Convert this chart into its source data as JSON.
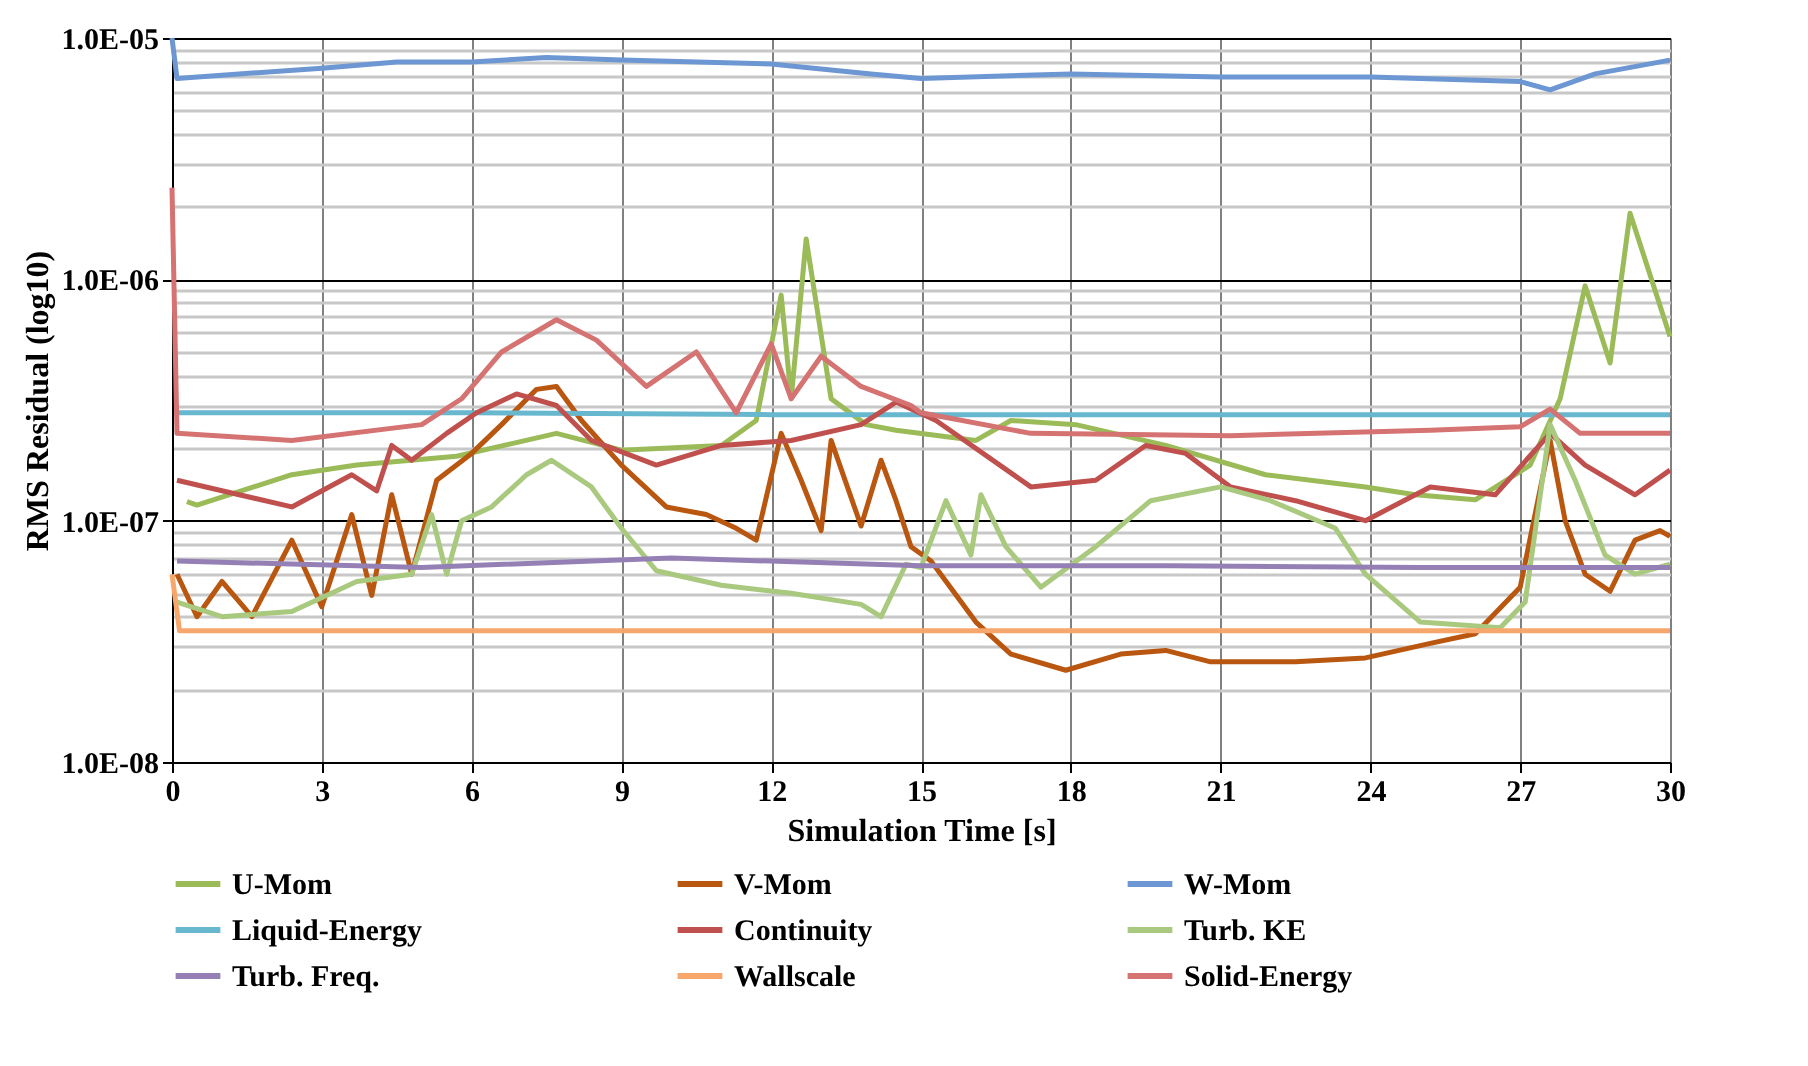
{
  "chart_data": {
    "type": "line",
    "xlabel": "Simulation Time [s]",
    "ylabel": "RMS Residual (log10)",
    "log": "y",
    "grid": true,
    "legend": "bottom",
    "line_style": "solid",
    "marker": "none",
    "xlim": [
      0,
      30
    ],
    "xticks": [
      0,
      3,
      6,
      9,
      12,
      15,
      18,
      21,
      24,
      27,
      30
    ],
    "ylim": [
      1e-08,
      1e-05
    ],
    "yticks": [
      {
        "value": 1e-08,
        "label": "1.0E-08"
      },
      {
        "value": 1e-07,
        "label": "1.0E-07"
      },
      {
        "value": 1e-06,
        "label": "1.0E-06"
      },
      {
        "value": 1e-05,
        "label": "1.0E-05"
      }
    ],
    "series": [
      {
        "name": "U-Mom",
        "color": "#9bbb59",
        "x": [
          0.3,
          0.5,
          2.4,
          3.7,
          5.7,
          7.7,
          9,
          11,
          11.7,
          12.2,
          12.4,
          12.7,
          13.2,
          13.9,
          14.5,
          16.1,
          16.8,
          18.1,
          19.9,
          21.9,
          23.9,
          24.9,
          26.1,
          27.2,
          27.8,
          28.3,
          28.8,
          29.2,
          30
        ],
        "values": [
          1.2e-07,
          1.16e-07,
          1.55e-07,
          1.7e-07,
          1.85e-07,
          2.3e-07,
          1.96e-07,
          2.05e-07,
          2.6e-07,
          8.6e-07,
          3.2e-07,
          1.47e-06,
          3.2e-07,
          2.5e-07,
          2.37e-07,
          2.15e-07,
          2.6e-07,
          2.5e-07,
          2.05e-07,
          1.55e-07,
          1.38e-07,
          1.28e-07,
          1.22e-07,
          1.7e-07,
          3.2e-07,
          9.4e-07,
          4.5e-07,
          1.88e-06,
          5.8e-07
        ]
      },
      {
        "name": "V-Mom",
        "color": "#b9560f",
        "x": [
          0.1,
          0.5,
          1.0,
          1.6,
          2.4,
          3.0,
          3.6,
          4.0,
          4.4,
          4.8,
          5.3,
          6.0,
          6.6,
          7.3,
          7.7,
          8.2,
          9.0,
          9.9,
          10.7,
          11.3,
          11.7,
          12.2,
          12.6,
          13.0,
          13.2,
          13.8,
          14.2,
          14.5,
          14.8,
          15.2,
          16.1,
          16.8,
          17.9,
          19.0,
          19.9,
          20.8,
          22.5,
          23.9,
          25.2,
          26.1,
          27.0,
          27.6,
          27.9,
          28.3,
          28.8,
          29.3,
          29.8,
          30
        ],
        "values": [
          6e-08,
          4e-08,
          5.6e-08,
          4e-08,
          8.3e-08,
          4.4e-08,
          1.06e-07,
          4.9e-08,
          1.28e-07,
          6e-08,
          1.47e-07,
          1.9e-07,
          2.5e-07,
          3.5e-07,
          3.6e-07,
          2.6e-07,
          1.7e-07,
          1.14e-07,
          1.06e-07,
          9.3e-08,
          8.3e-08,
          2.3e-07,
          1.47e-07,
          9.1e-08,
          2.15e-07,
          9.5e-08,
          1.78e-07,
          1.21e-07,
          7.8e-08,
          6.8e-08,
          3.8e-08,
          2.8e-08,
          2.4e-08,
          2.8e-08,
          2.9e-08,
          2.6e-08,
          2.6e-08,
          2.7e-08,
          3.1e-08,
          3.4e-08,
          5.3e-08,
          2.15e-07,
          1e-07,
          6e-08,
          5.1e-08,
          8.3e-08,
          9.1e-08,
          8.6e-08
        ]
      },
      {
        "name": "W-Mom",
        "color": "#6d97d3",
        "x": [
          0,
          0.1,
          3,
          4.5,
          6,
          7.5,
          9,
          12,
          14,
          15,
          18,
          21,
          24,
          27,
          27.6,
          28.5,
          30
        ],
        "values": [
          1e-05,
          6.8e-06,
          7.5e-06,
          7.96e-06,
          7.96e-06,
          8.3e-06,
          8.1e-06,
          7.8e-06,
          7.1e-06,
          6.8e-06,
          7.1e-06,
          6.9e-06,
          6.9e-06,
          6.6e-06,
          6.1e-06,
          7.1e-06,
          8.1e-06
        ]
      },
      {
        "name": "Liquid-Energy",
        "color": "#67b7cf",
        "x": [
          0.1,
          6,
          12,
          18,
          24,
          30
        ],
        "values": [
          2.8e-07,
          2.8e-07,
          2.75e-07,
          2.75e-07,
          2.75e-07,
          2.75e-07
        ]
      },
      {
        "name": "Continuity",
        "color": "#c0504d",
        "x": [
          0.1,
          1,
          2.4,
          3.6,
          4.1,
          4.4,
          4.8,
          5.5,
          6.1,
          6.9,
          7.7,
          8.4,
          9.7,
          11,
          12.4,
          13.8,
          14.5,
          15.3,
          17.2,
          18.5,
          19.5,
          20.3,
          21.2,
          22.5,
          23.9,
          25.2,
          26.5,
          27.6,
          28.3,
          29.3,
          30
        ],
        "values": [
          1.47e-07,
          1.33e-07,
          1.14e-07,
          1.55e-07,
          1.33e-07,
          2.05e-07,
          1.78e-07,
          2.3e-07,
          2.8e-07,
          3.35e-07,
          3e-07,
          2.15e-07,
          1.7e-07,
          2.05e-07,
          2.15e-07,
          2.5e-07,
          3.1e-07,
          2.6e-07,
          1.38e-07,
          1.47e-07,
          2.05e-07,
          1.9e-07,
          1.38e-07,
          1.21e-07,
          1e-07,
          1.38e-07,
          1.28e-07,
          2.3e-07,
          1.7e-07,
          1.28e-07,
          1.62e-07
        ]
      },
      {
        "name": "Turb. KE",
        "color": "#a9c97e",
        "x": [
          0.1,
          1,
          2.4,
          3.7,
          4.8,
          5.2,
          5.5,
          5.8,
          6.4,
          7.1,
          7.6,
          8.4,
          9,
          9.7,
          11,
          12.4,
          13.8,
          14.2,
          14.7,
          15.0,
          15.5,
          16,
          16.2,
          16.7,
          17.4,
          18.5,
          19.6,
          21,
          22,
          23.3,
          23.9,
          25,
          26.6,
          27.1,
          27.6,
          28.1,
          28.7,
          29.3,
          30
        ],
        "values": [
          4.6e-08,
          4e-08,
          4.2e-08,
          5.6e-08,
          6e-08,
          1.06e-07,
          6e-08,
          1e-07,
          1.14e-07,
          1.55e-07,
          1.78e-07,
          1.38e-07,
          9.3e-08,
          6.2e-08,
          5.4e-08,
          5e-08,
          4.5e-08,
          4e-08,
          6.6e-08,
          6.4e-08,
          1.21e-07,
          7.2e-08,
          1.28e-07,
          7.8e-08,
          5.3e-08,
          7.8e-08,
          1.21e-07,
          1.38e-07,
          1.21e-07,
          9.3e-08,
          6e-08,
          3.8e-08,
          3.6e-08,
          4.6e-08,
          2.5e-07,
          1.47e-07,
          7.2e-08,
          6e-08,
          6.6e-08
        ]
      },
      {
        "name": "Turb. Freq.",
        "color": "#9480b5",
        "x": [
          0.1,
          5,
          10,
          15,
          20,
          25,
          30
        ],
        "values": [
          6.8e-08,
          6.4e-08,
          7e-08,
          6.5e-08,
          6.5e-08,
          6.4e-08,
          6.4e-08
        ]
      },
      {
        "name": "Wallscale",
        "color": "#f8a76c",
        "x": [
          0,
          0.15,
          30
        ],
        "values": [
          6e-08,
          3.5e-08,
          3.5e-08
        ]
      },
      {
        "name": "Solid-Energy",
        "color": "#d47371",
        "x": [
          0,
          0.1,
          2.4,
          5,
          5.8,
          6.6,
          7.7,
          8.5,
          9.5,
          10.5,
          11.3,
          12,
          12.4,
          13,
          13.8,
          14.8,
          15,
          17.2,
          21.2,
          25.2,
          27,
          27.6,
          28.2,
          30
        ],
        "values": [
          2.4e-06,
          2.3e-07,
          2.15e-07,
          2.5e-07,
          3.2e-07,
          5e-07,
          6.8e-07,
          5.6e-07,
          3.6e-07,
          5e-07,
          2.8e-07,
          5.4e-07,
          3.2e-07,
          4.8e-07,
          3.6e-07,
          3e-07,
          2.8e-07,
          2.3e-07,
          2.25e-07,
          2.37e-07,
          2.45e-07,
          2.9e-07,
          2.3e-07,
          2.3e-07
        ]
      }
    ]
  }
}
